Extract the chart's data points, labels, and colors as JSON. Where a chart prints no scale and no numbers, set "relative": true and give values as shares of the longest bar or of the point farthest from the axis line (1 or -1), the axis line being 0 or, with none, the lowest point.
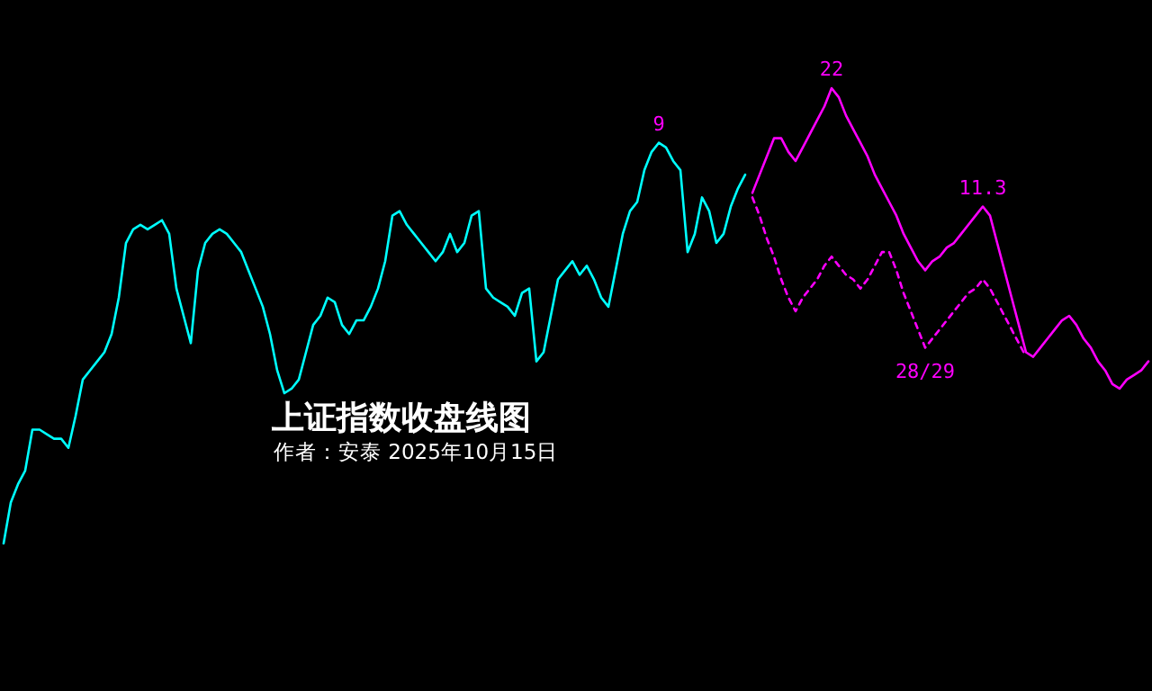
{
  "chart_data": {
    "type": "line",
    "relative": true,
    "title": "上证指数收盘线图",
    "subtitle": "作者：安泰 2025年10月15日",
    "categories": [
      null,
      null,
      null,
      null,
      null,
      null,
      null,
      null,
      null,
      null,
      null,
      null,
      null,
      null,
      null,
      null,
      null,
      null,
      null,
      null,
      null,
      null,
      null,
      null,
      null,
      null,
      null,
      null,
      null,
      null,
      null,
      null,
      null,
      null,
      null,
      null,
      null,
      null,
      null,
      null,
      null,
      null,
      null,
      null,
      null,
      null,
      null,
      null,
      null,
      null,
      null,
      null,
      null,
      null,
      null,
      null,
      null,
      null,
      null,
      null,
      null,
      null,
      null,
      null,
      null,
      null,
      null,
      null,
      null,
      null,
      null,
      null,
      null,
      null,
      null,
      null,
      null,
      null,
      null,
      null,
      null,
      null,
      null,
      null,
      null,
      null,
      null,
      null,
      null,
      null,
      null,
      null,
      null,
      null,
      null,
      null,
      null,
      null,
      null,
      null,
      null,
      null,
      null,
      null,
      null,
      null,
      null,
      null,
      null,
      null,
      null,
      null,
      null,
      null,
      null,
      null,
      null,
      null,
      null,
      null,
      null,
      null,
      null,
      null,
      null,
      null,
      null,
      null,
      null,
      null,
      null,
      null,
      null,
      null,
      null,
      null,
      null,
      null,
      null,
      null,
      null,
      null,
      null,
      null,
      null,
      null,
      null,
      null,
      null,
      null,
      null,
      null,
      null,
      null,
      null,
      null,
      null,
      null,
      null,
      null
    ],
    "series": [
      {
        "color": "#00ffff",
        "line_style": "solid",
        "values": [
          0.0,
          0.09,
          0.13,
          0.16,
          0.25,
          0.25,
          0.24,
          0.23,
          0.23,
          0.21,
          0.28,
          0.36,
          0.38,
          0.4,
          0.42,
          0.46,
          0.54,
          0.66,
          0.69,
          0.7,
          0.69,
          0.7,
          0.71,
          0.68,
          0.56,
          0.5,
          0.44,
          0.6,
          0.66,
          0.68,
          0.69,
          0.68,
          0.66,
          0.64,
          0.6,
          0.56,
          0.52,
          0.46,
          0.38,
          0.33,
          0.34,
          0.36,
          0.42,
          0.48,
          0.5,
          0.54,
          0.53,
          0.48,
          0.46,
          0.49,
          0.49,
          0.52,
          0.56,
          0.62,
          0.72,
          0.73,
          0.7,
          0.68,
          0.66,
          0.64,
          0.62,
          0.64,
          0.68,
          0.64,
          0.66,
          0.72,
          0.73,
          0.56,
          0.54,
          0.53,
          0.52,
          0.5,
          0.55,
          0.56,
          0.4,
          0.42,
          0.5,
          0.58,
          0.6,
          0.62,
          0.59,
          0.61,
          0.58,
          0.54,
          0.52,
          0.6,
          0.68,
          0.73,
          0.75,
          0.82,
          0.86,
          0.88,
          0.87,
          0.84,
          0.82,
          0.64,
          0.68,
          0.76,
          0.73,
          0.66,
          0.68,
          0.74,
          0.78,
          0.81,
          null,
          null,
          null,
          null,
          null,
          null,
          null,
          null,
          null,
          null,
          null,
          null,
          null,
          null,
          null,
          null,
          null,
          null,
          null,
          null,
          null,
          null,
          null,
          null,
          null,
          null,
          null,
          null,
          null,
          null,
          null,
          null,
          null,
          null,
          null,
          null,
          null,
          null,
          null,
          null,
          null,
          null,
          null,
          null,
          null,
          null,
          null,
          null,
          null,
          null,
          null,
          null,
          null,
          null,
          null,
          null
        ]
      },
      {
        "color": "#ff00ff",
        "line_style": "solid",
        "values": [
          null,
          null,
          null,
          null,
          null,
          null,
          null,
          null,
          null,
          null,
          null,
          null,
          null,
          null,
          null,
          null,
          null,
          null,
          null,
          null,
          null,
          null,
          null,
          null,
          null,
          null,
          null,
          null,
          null,
          null,
          null,
          null,
          null,
          null,
          null,
          null,
          null,
          null,
          null,
          null,
          null,
          null,
          null,
          null,
          null,
          null,
          null,
          null,
          null,
          null,
          null,
          null,
          null,
          null,
          null,
          null,
          null,
          null,
          null,
          null,
          null,
          null,
          null,
          null,
          null,
          null,
          null,
          null,
          null,
          null,
          null,
          null,
          null,
          null,
          null,
          null,
          null,
          null,
          null,
          null,
          null,
          null,
          null,
          null,
          null,
          null,
          null,
          null,
          null,
          null,
          null,
          null,
          null,
          null,
          null,
          null,
          null,
          null,
          null,
          null,
          null,
          null,
          null,
          null,
          0.77,
          0.81,
          0.85,
          0.89,
          0.89,
          0.86,
          0.84,
          0.87,
          0.9,
          0.93,
          0.96,
          1.0,
          0.98,
          0.94,
          0.91,
          0.88,
          0.85,
          0.81,
          0.78,
          0.75,
          0.72,
          0.68,
          0.65,
          0.62,
          0.6,
          0.62,
          0.63,
          0.65,
          0.66,
          0.68,
          0.7,
          0.72,
          0.74,
          0.72,
          0.66,
          0.6,
          0.54,
          0.48,
          0.42,
          0.41,
          0.43,
          0.45,
          0.47,
          0.49,
          0.5,
          0.48,
          0.45,
          0.43,
          0.4,
          0.38,
          0.35,
          0.34,
          0.36,
          0.37,
          0.38,
          0.4
        ]
      },
      {
        "color": "#ff00ff",
        "line_style": "dashed",
        "values": [
          null,
          null,
          null,
          null,
          null,
          null,
          null,
          null,
          null,
          null,
          null,
          null,
          null,
          null,
          null,
          null,
          null,
          null,
          null,
          null,
          null,
          null,
          null,
          null,
          null,
          null,
          null,
          null,
          null,
          null,
          null,
          null,
          null,
          null,
          null,
          null,
          null,
          null,
          null,
          null,
          null,
          null,
          null,
          null,
          null,
          null,
          null,
          null,
          null,
          null,
          null,
          null,
          null,
          null,
          null,
          null,
          null,
          null,
          null,
          null,
          null,
          null,
          null,
          null,
          null,
          null,
          null,
          null,
          null,
          null,
          null,
          null,
          null,
          null,
          null,
          null,
          null,
          null,
          null,
          null,
          null,
          null,
          null,
          null,
          null,
          null,
          null,
          null,
          null,
          null,
          null,
          null,
          null,
          null,
          null,
          null,
          null,
          null,
          null,
          null,
          null,
          null,
          null,
          null,
          0.76,
          0.72,
          0.67,
          0.63,
          0.58,
          0.54,
          0.51,
          0.54,
          0.56,
          0.58,
          0.61,
          0.63,
          0.61,
          0.59,
          0.58,
          0.56,
          0.58,
          0.61,
          0.64,
          0.64,
          0.6,
          0.55,
          0.51,
          0.47,
          0.43,
          0.45,
          0.47,
          0.49,
          0.51,
          0.53,
          0.55,
          0.56,
          0.58,
          0.56,
          0.53,
          0.5,
          0.47,
          0.44,
          0.41,
          null,
          null,
          null,
          null,
          null,
          null,
          null,
          null,
          null,
          null,
          null,
          null,
          null,
          null,
          null,
          null,
          null
        ]
      }
    ],
    "annotations": [
      {
        "text": "9",
        "y": 0.88
      },
      {
        "text": "22",
        "y": 1.0
      },
      {
        "text": "11.3",
        "y": 0.74
      },
      {
        "text": "28/29",
        "y": 0.43
      }
    ]
  }
}
